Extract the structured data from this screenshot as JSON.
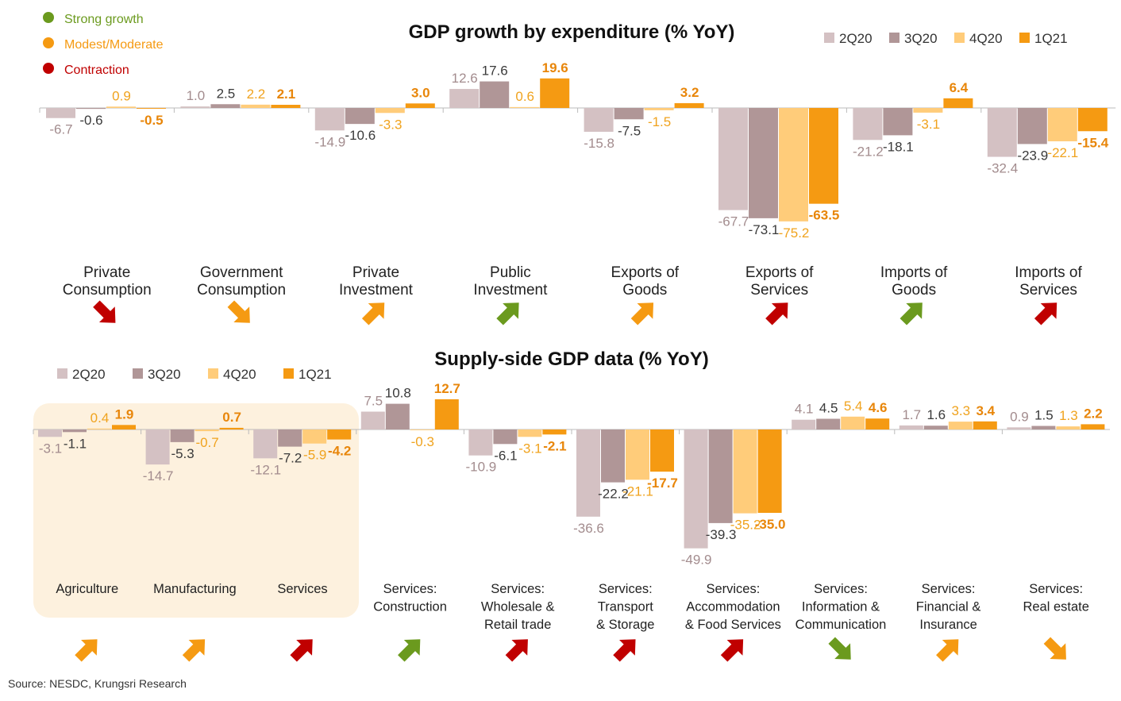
{
  "colors": {
    "2Q20": "#d4c1c3",
    "3Q20": "#b09697",
    "4Q20": "#ffcc7a",
    "1Q21": "#f59a12",
    "label_2Q20": "#a38c8e",
    "label_3Q20": "#3a3a3a",
    "label_4Q20": "#f0a31e",
    "label_1Q21": "#e8860a",
    "strong": "#6b9a1e",
    "modest": "#f59a12",
    "contraction": "#c00000",
    "highlight": "#fdf1de",
    "text": "#222222",
    "axis": "#bbbbbb"
  },
  "signals": {
    "strong": "Strong growth",
    "modest": "Modest/Moderate",
    "contraction": "Contraction"
  },
  "source": "Source: NESDC, Krungsri Research",
  "chart_data": [
    {
      "type": "bar",
      "title": "GDP growth by expenditure (% YoY)",
      "series_names": [
        "2Q20",
        "3Q20",
        "4Q20",
        "1Q21"
      ],
      "categories": [
        {
          "label": [
            "Private",
            "Consumption"
          ],
          "values": [
            -6.7,
            -0.6,
            0.9,
            -0.5
          ],
          "signal": "contraction",
          "arrow": "down-right"
        },
        {
          "label": [
            "Government",
            "Consumption"
          ],
          "values": [
            1.0,
            2.5,
            2.2,
            2.1
          ],
          "signal": "modest",
          "arrow": "down-right"
        },
        {
          "label": [
            "Private",
            "Investment"
          ],
          "values": [
            -14.9,
            -10.6,
            -3.3,
            3.0
          ],
          "signal": "modest",
          "arrow": "up-right"
        },
        {
          "label": [
            "Public",
            "Investment"
          ],
          "values": [
            12.6,
            17.6,
            0.6,
            19.6
          ],
          "signal": "strong",
          "arrow": "up-right"
        },
        {
          "label": [
            "Exports of",
            "Goods"
          ],
          "values": [
            -15.8,
            -7.5,
            -1.5,
            3.2
          ],
          "signal": "modest",
          "arrow": "up-right"
        },
        {
          "label": [
            "Exports of",
            "Services"
          ],
          "values": [
            -67.7,
            -73.1,
            -75.2,
            -63.5
          ],
          "signal": "contraction",
          "arrow": "up-right"
        },
        {
          "label": [
            "Imports of",
            "Goods"
          ],
          "values": [
            -21.2,
            -18.1,
            -3.1,
            6.4
          ],
          "signal": "strong",
          "arrow": "up-right"
        },
        {
          "label": [
            "Imports of",
            "Services"
          ],
          "values": [
            -32.4,
            -23.9,
            -22.1,
            -15.4
          ],
          "signal": "contraction",
          "arrow": "up-right"
        }
      ]
    },
    {
      "type": "bar",
      "title": "Supply-side GDP data (% YoY)",
      "series_names": [
        "2Q20",
        "3Q20",
        "4Q20",
        "1Q21"
      ],
      "categories": [
        {
          "label": [
            "Agriculture"
          ],
          "values": [
            -3.1,
            -1.1,
            0.4,
            1.9
          ],
          "signal": "modest",
          "arrow": "up-right"
        },
        {
          "label": [
            "Manufacturing"
          ],
          "values": [
            -14.7,
            -5.3,
            -0.7,
            0.7
          ],
          "signal": "modest",
          "arrow": "up-right"
        },
        {
          "label": [
            "Services"
          ],
          "values": [
            -12.1,
            -7.2,
            -5.9,
            -4.2
          ],
          "signal": "contraction",
          "arrow": "up-right"
        },
        {
          "label": [
            "Services:",
            "Construction"
          ],
          "values": [
            7.5,
            10.8,
            -0.3,
            12.7
          ],
          "signal": "strong",
          "arrow": "up-right"
        },
        {
          "label": [
            "Services:",
            "Wholesale &",
            "Retail trade"
          ],
          "values": [
            -10.9,
            -6.1,
            -3.1,
            -2.1
          ],
          "signal": "contraction",
          "arrow": "up-right"
        },
        {
          "label": [
            "Services:",
            "Transport",
            "& Storage"
          ],
          "values": [
            -36.6,
            -22.2,
            -21.1,
            -17.7
          ],
          "signal": "contraction",
          "arrow": "up-right"
        },
        {
          "label": [
            "Services:",
            "Accommodation",
            "& Food Services"
          ],
          "values": [
            -49.9,
            -39.3,
            -35.2,
            -35.0
          ],
          "signal": "contraction",
          "arrow": "up-right"
        },
        {
          "label": [
            "Services:",
            "Information &",
            "Communication"
          ],
          "values": [
            4.1,
            4.5,
            5.4,
            4.6
          ],
          "signal": "strong",
          "arrow": "down-right"
        },
        {
          "label": [
            "Services:",
            "Financial &",
            "Insurance"
          ],
          "values": [
            1.7,
            1.6,
            3.3,
            3.4
          ],
          "signal": "modest",
          "arrow": "up-right"
        },
        {
          "label": [
            "Services:",
            "Real estate"
          ],
          "values": [
            0.9,
            1.5,
            1.3,
            2.2
          ],
          "signal": "modest",
          "arrow": "down-right"
        }
      ],
      "highlight_group": [
        0,
        1,
        2
      ]
    }
  ]
}
